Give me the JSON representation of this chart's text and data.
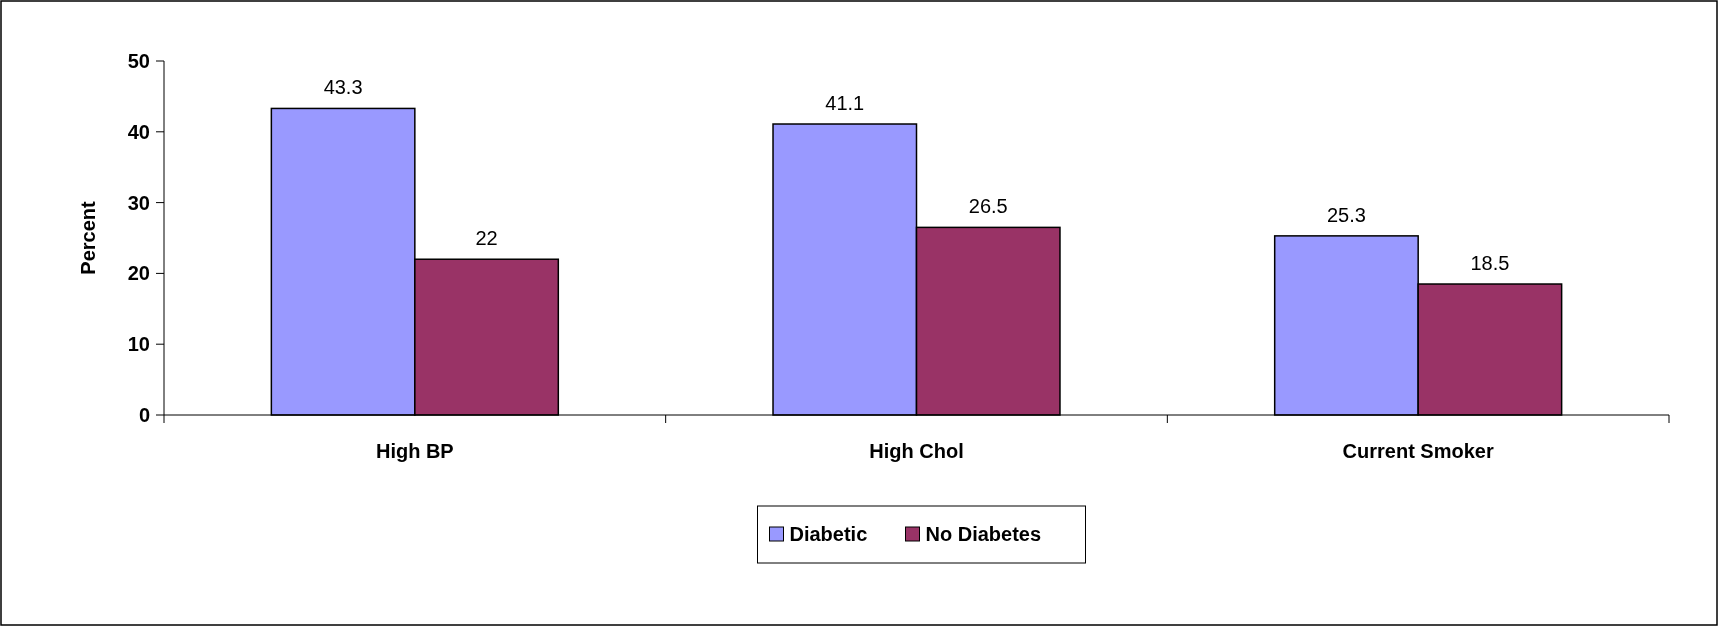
{
  "chart_data": {
    "type": "bar",
    "categories": [
      "High BP",
      "High Chol",
      "Current Smoker"
    ],
    "series": [
      {
        "name": "Diabetic",
        "color": "#9999ff",
        "values": [
          43.3,
          41.1,
          25.3
        ]
      },
      {
        "name": "No Diabetes",
        "color": "#993366",
        "values": [
          22,
          26.5,
          18.5
        ]
      }
    ],
    "ylabel": "Percent",
    "ylim": [
      0,
      50
    ],
    "yticks": [
      0,
      10,
      20,
      30,
      40,
      50
    ],
    "data_labels": true,
    "legend": "bottom",
    "grid": false
  }
}
